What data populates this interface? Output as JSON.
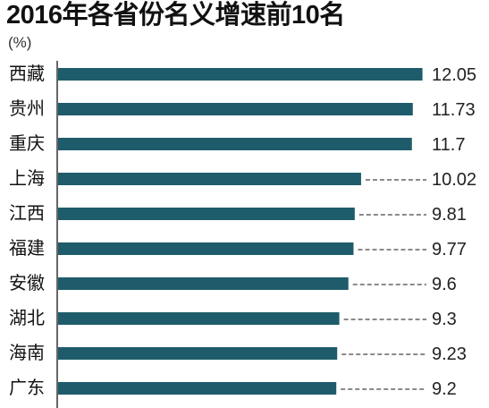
{
  "chart_data": {
    "type": "bar",
    "orientation": "horizontal",
    "title": "2016年各省份名义增速前10名",
    "unit": "(%)",
    "categories": [
      "西藏",
      "贵州",
      "重庆",
      "上海",
      "江西",
      "福建",
      "安徽",
      "湖北",
      "海南",
      "广东"
    ],
    "values": [
      12.05,
      11.73,
      11.7,
      10.02,
      9.81,
      9.77,
      9.6,
      9.3,
      9.23,
      9.2
    ],
    "xlim": [
      0,
      14.25
    ],
    "grid": false,
    "bar_color": "#1f5c6b",
    "axis_color": "#333333",
    "leader_color": "#444444"
  }
}
